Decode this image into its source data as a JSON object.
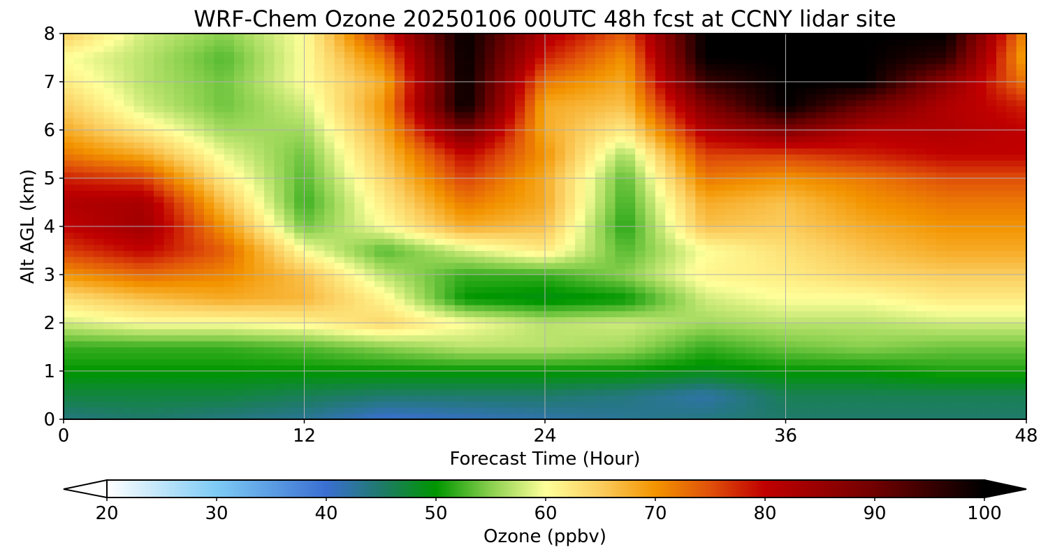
{
  "chart_data": {
    "type": "heatmap",
    "title": "WRF-Chem Ozone  20250106 00UTC 48h fcst at CCNY lidar site",
    "xlabel": "Forecast Time (Hour)",
    "ylabel": "Alt AGL (km)",
    "xlim": [
      0,
      48
    ],
    "ylim": [
      0,
      8
    ],
    "xticks": [
      0,
      12,
      24,
      36,
      48
    ],
    "yticks": [
      0,
      1,
      2,
      3,
      4,
      5,
      6,
      7,
      8
    ],
    "grid": true,
    "x": [
      0,
      4,
      8,
      12,
      16,
      20,
      24,
      28,
      32,
      36,
      40,
      44,
      48
    ],
    "y": [
      0,
      0.5,
      1,
      1.5,
      2,
      2.5,
      3,
      3.5,
      4,
      4.5,
      5,
      5.5,
      6,
      6.5,
      7,
      7.5,
      8
    ],
    "z": [
      [
        44,
        45,
        44,
        43,
        40,
        41,
        42,
        43,
        44,
        45,
        45,
        45,
        45
      ],
      [
        47,
        47,
        47,
        46,
        45,
        45,
        45,
        44,
        42,
        46,
        46,
        46,
        46
      ],
      [
        50,
        50,
        50,
        50,
        50,
        50,
        50,
        50,
        49,
        50,
        50,
        51,
        51
      ],
      [
        52,
        52,
        52,
        53,
        55,
        57,
        57,
        56,
        52,
        54,
        55,
        54,
        54
      ],
      [
        58,
        60,
        60,
        61,
        64,
        60,
        57,
        58,
        56,
        57,
        57,
        58,
        58
      ],
      [
        63,
        66,
        68,
        67,
        61,
        50,
        49,
        50,
        58,
        60,
        60,
        62,
        62
      ],
      [
        70,
        73,
        71,
        66,
        57,
        52,
        52,
        55,
        61,
        62,
        64,
        65,
        65
      ],
      [
        76,
        80,
        74,
        60,
        53,
        58,
        62,
        53,
        60,
        63,
        66,
        68,
        68
      ],
      [
        80,
        84,
        70,
        54,
        60,
        68,
        66,
        51,
        66,
        65,
        68,
        70,
        70
      ],
      [
        82,
        83,
        66,
        52,
        62,
        72,
        68,
        52,
        68,
        66,
        70,
        72,
        72
      ],
      [
        78,
        76,
        62,
        53,
        64,
        76,
        68,
        53,
        72,
        70,
        72,
        75,
        75
      ],
      [
        72,
        68,
        59,
        54,
        66,
        80,
        70,
        56,
        76,
        76,
        78,
        80,
        80
      ],
      [
        68,
        62,
        56,
        56,
        68,
        90,
        68,
        62,
        82,
        88,
        82,
        82,
        80
      ],
      [
        65,
        58,
        54,
        58,
        70,
        100,
        68,
        66,
        88,
        100,
        90,
        82,
        78
      ],
      [
        62,
        57,
        54,
        60,
        68,
        100,
        72,
        68,
        95,
        100,
        100,
        86,
        72
      ],
      [
        60,
        57,
        53,
        60,
        72,
        100,
        78,
        70,
        100,
        100,
        100,
        96,
        68
      ],
      [
        65,
        58,
        55,
        60,
        78,
        100,
        82,
        74,
        100,
        100,
        100,
        100,
        70
      ]
    ],
    "colorbar": {
      "label": "Ozone  (ppbv)",
      "ticks": [
        20,
        30,
        40,
        50,
        60,
        70,
        80,
        90,
        100
      ],
      "min": 20,
      "max": 100,
      "extend": "both",
      "palette": [
        [
          20,
          "#ffffff"
        ],
        [
          30,
          "#7dcbf5"
        ],
        [
          40,
          "#3a6fd2"
        ],
        [
          45,
          "#1f7a6a"
        ],
        [
          50,
          "#009600"
        ],
        [
          55,
          "#8ad04e"
        ],
        [
          60,
          "#ffff9a"
        ],
        [
          65,
          "#fbcd5e"
        ],
        [
          70,
          "#f39400"
        ],
        [
          75,
          "#e0500a"
        ],
        [
          80,
          "#c00000"
        ],
        [
          90,
          "#700000"
        ],
        [
          100,
          "#000000"
        ]
      ]
    }
  }
}
